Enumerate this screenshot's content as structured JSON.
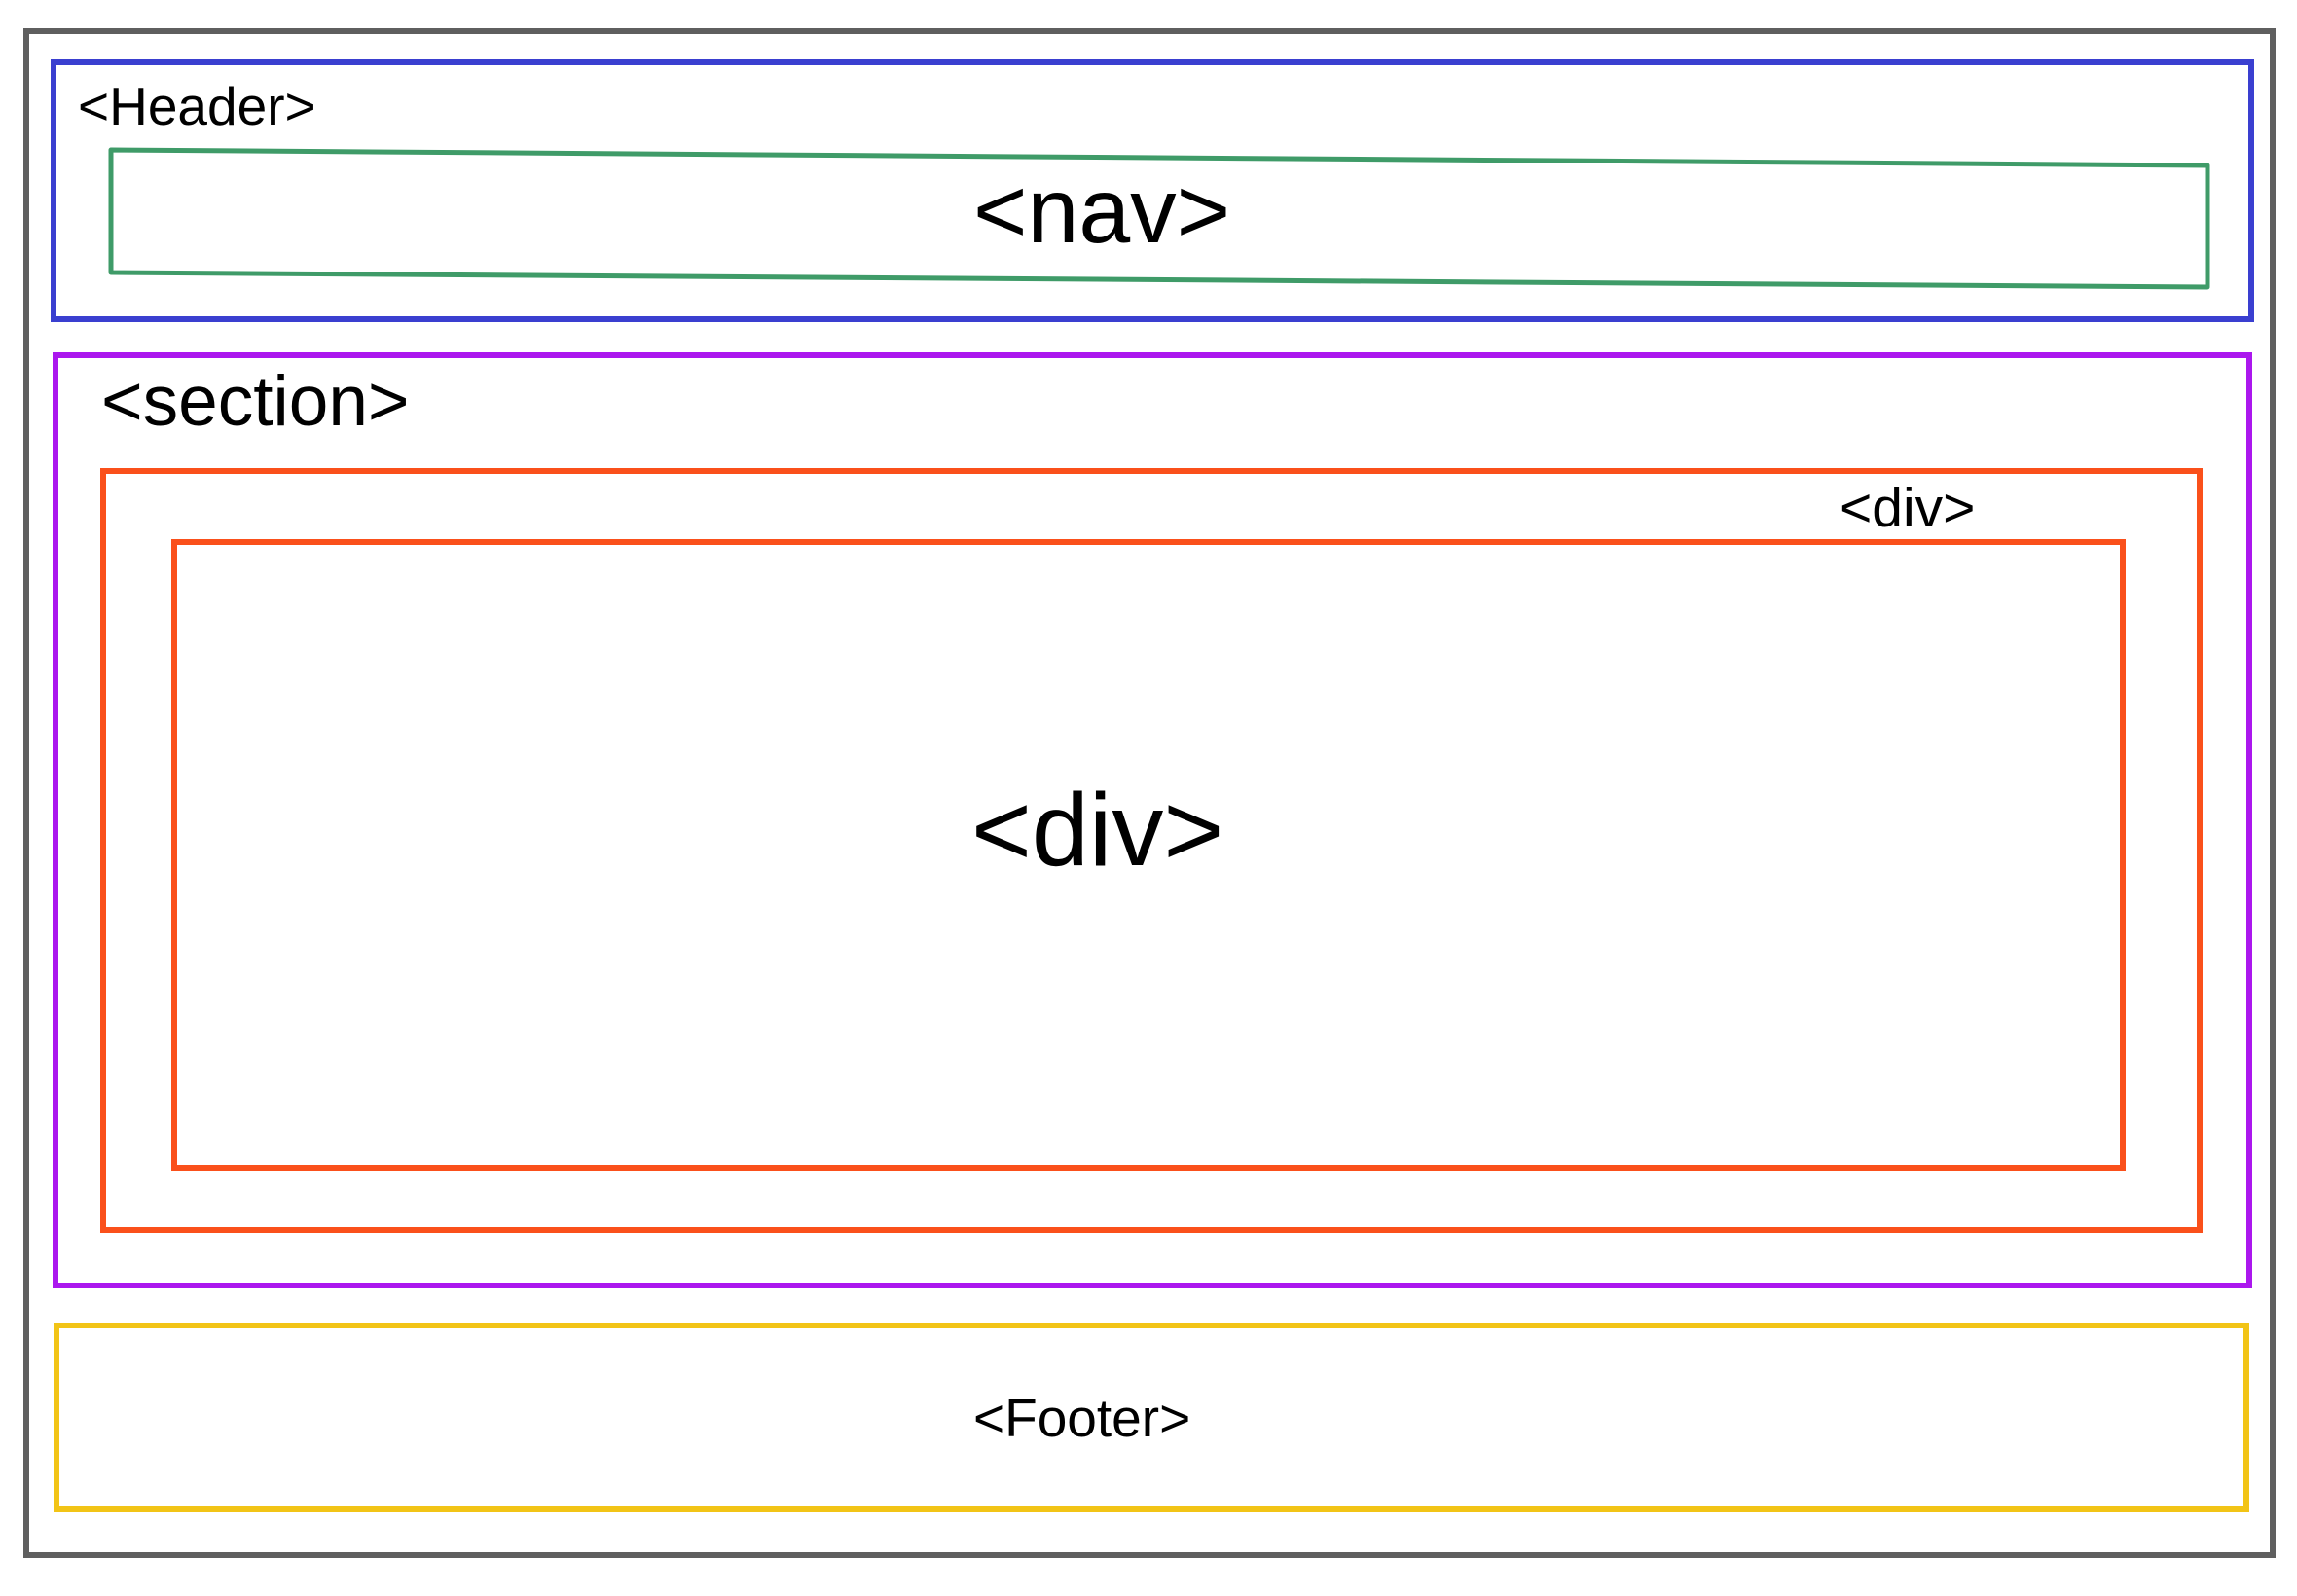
{
  "diagram": {
    "header": {
      "label": "<Header>",
      "color": "#3a3fd0"
    },
    "nav": {
      "label": "<nav>",
      "color": "#3f9b68"
    },
    "section": {
      "label": "<section>",
      "color": "#ab17ee"
    },
    "outer_div": {
      "label": "<div>",
      "color": "#fa501b"
    },
    "inner_div": {
      "label": "<div>",
      "color": "#fa501b"
    },
    "footer": {
      "label": "<Footer>",
      "color": "#f2c416"
    },
    "frame": {
      "color": "#5f5f5f"
    }
  }
}
